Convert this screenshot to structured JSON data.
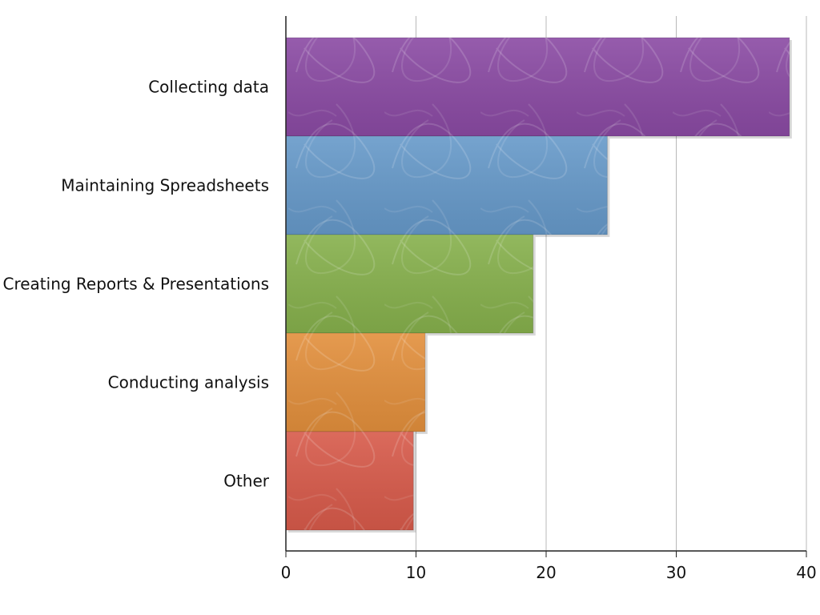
{
  "chart_data": {
    "type": "bar",
    "orientation": "horizontal",
    "title": "",
    "xlabel": "",
    "ylabel": "",
    "categories": [
      "Collecting data",
      "Maintaining Spreadsheets",
      "Creating Reports & Presentations",
      "Conducting analysis",
      "Other"
    ],
    "values": [
      38.7,
      24.7,
      19.0,
      10.7,
      9.8
    ],
    "xlim": [
      0,
      40
    ],
    "xticks": [
      0,
      10,
      20,
      30,
      40
    ],
    "xtick_labels": [
      "0",
      "10",
      "20",
      "30",
      "40"
    ],
    "grid": "vertical",
    "legend": "none",
    "colors": [
      "#8a4aa3",
      "#6699c9",
      "#86b04c",
      "#e28f3c",
      "#d75a4a"
    ]
  }
}
